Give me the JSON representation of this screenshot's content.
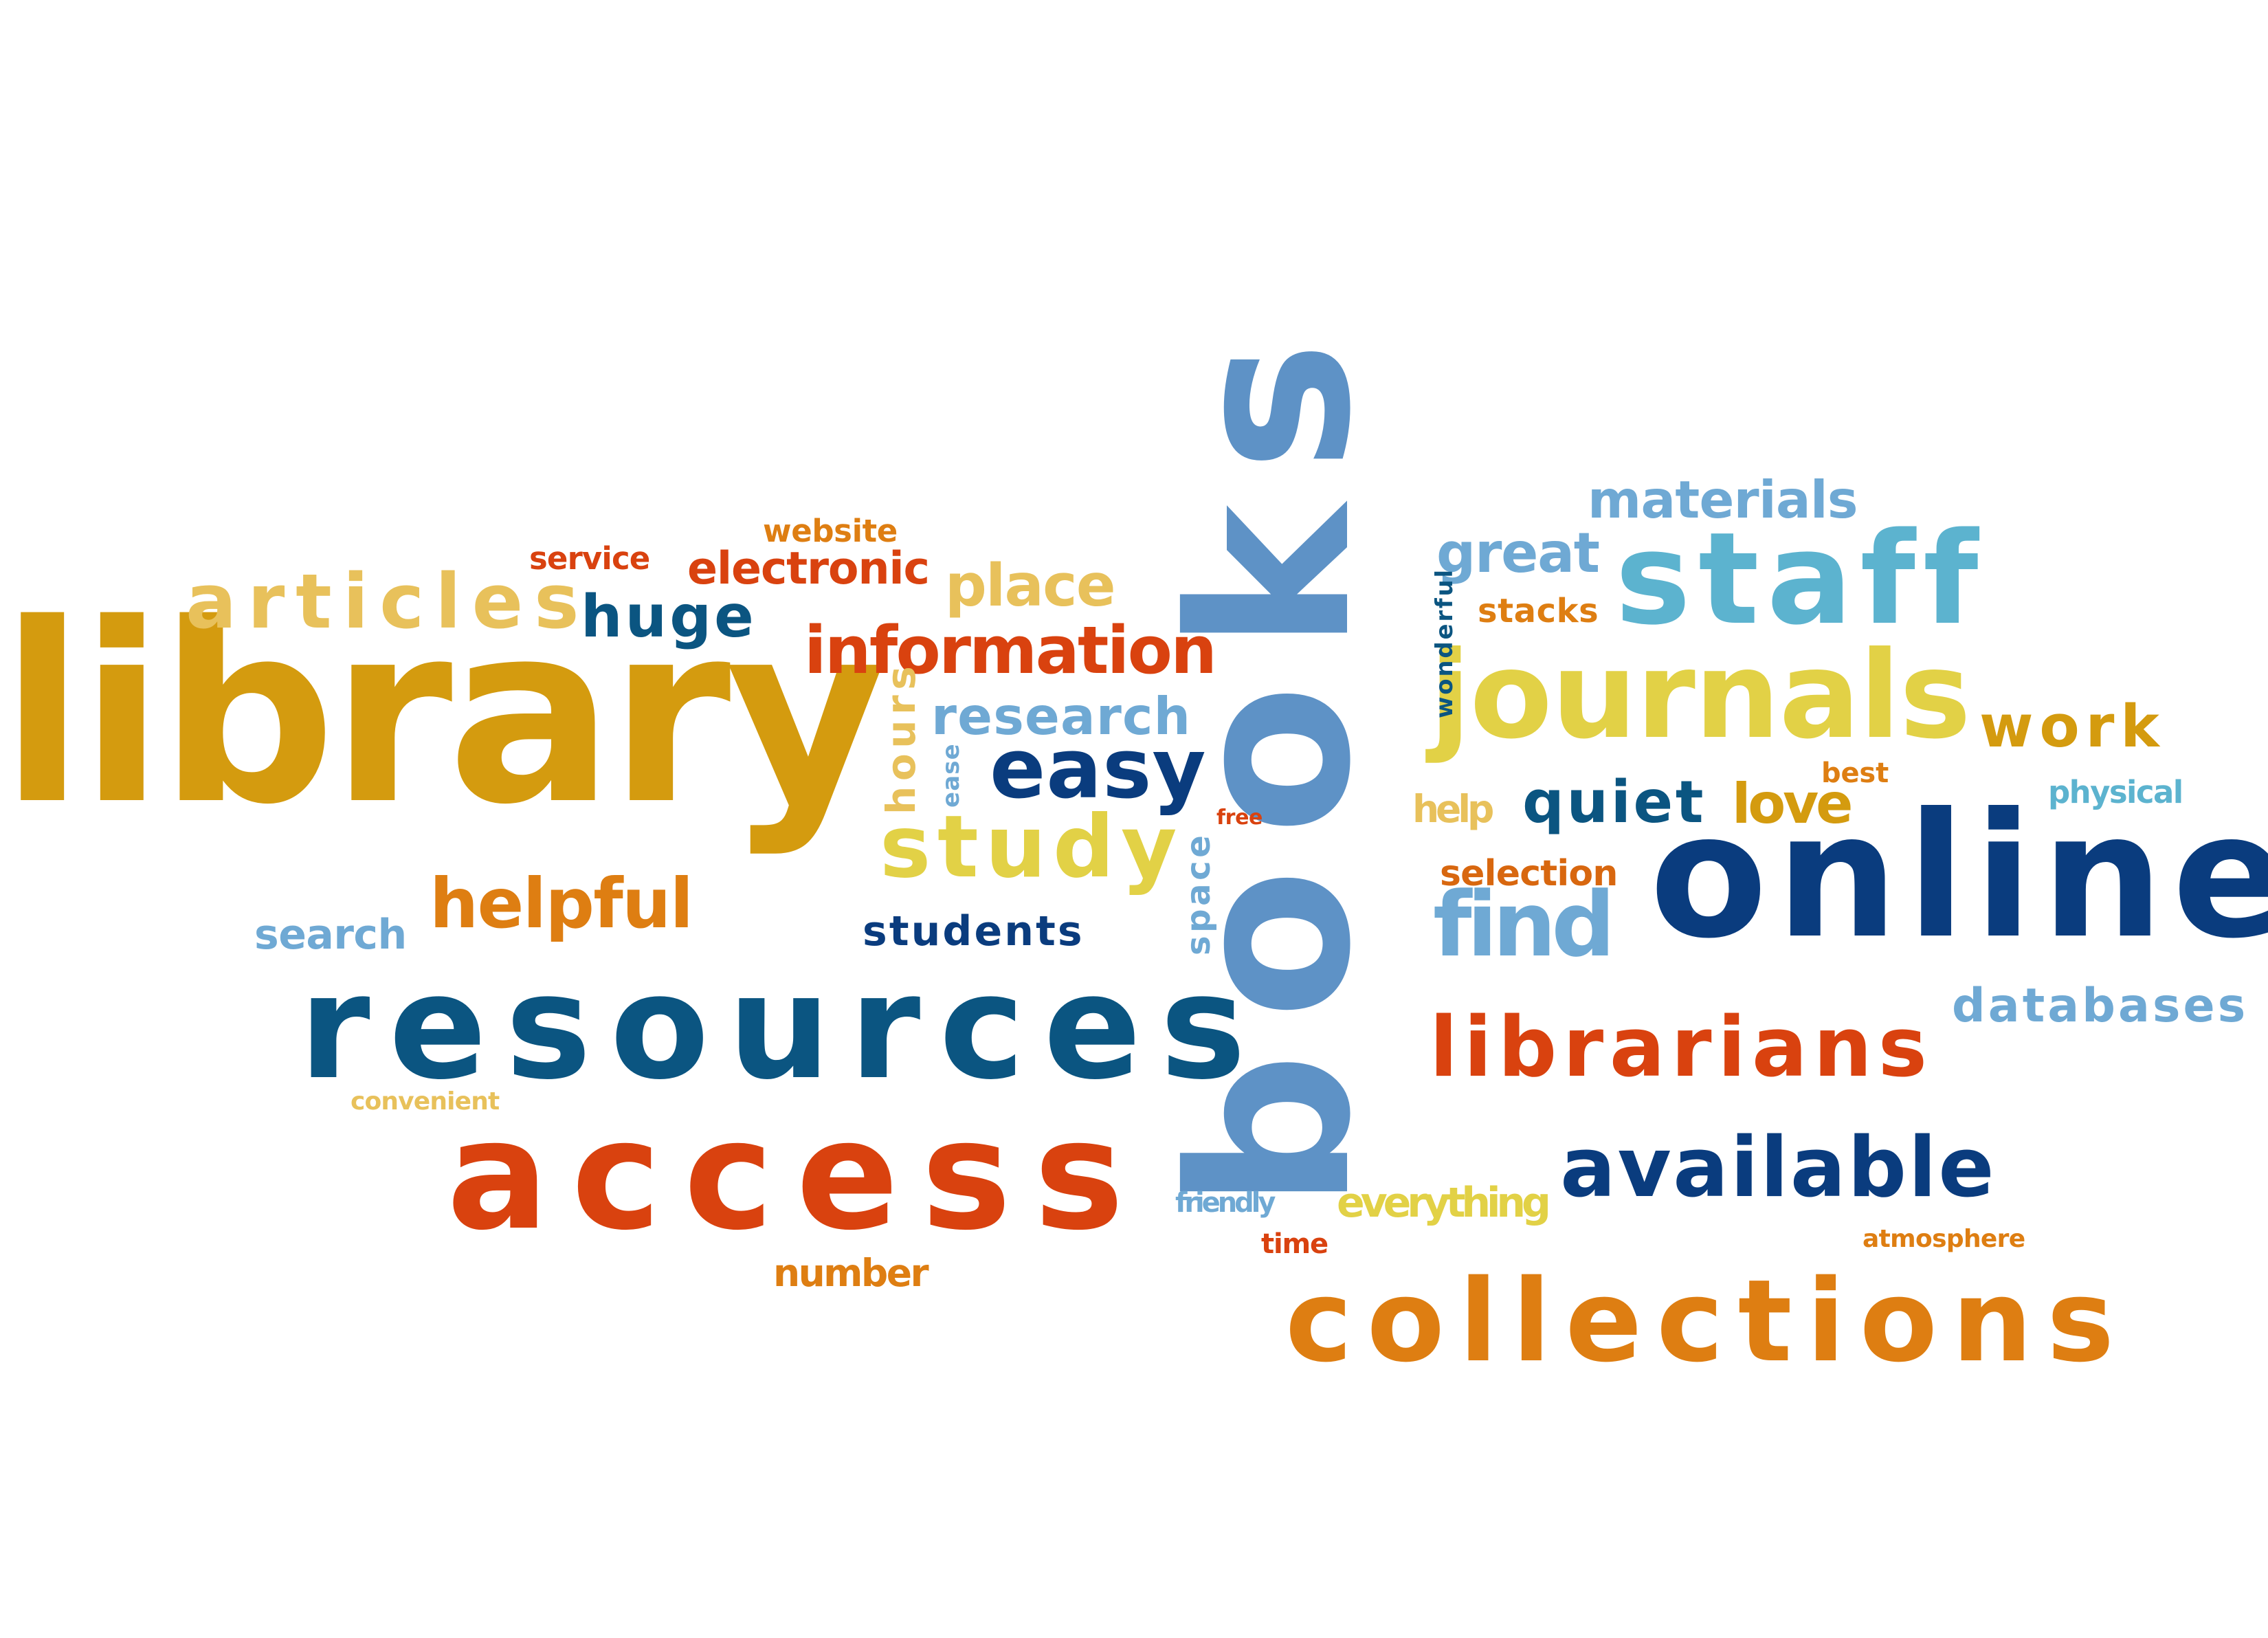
{
  "palette": {
    "gold": "#D49B0F",
    "light_gold": "#E8C15B",
    "yellow": "#E2D146",
    "orange_red": "#D9420F",
    "orange": "#DE7E12",
    "dark_orange": "#D8670F",
    "navy": "#0A3C7E",
    "teal_blue": "#0B5581",
    "steel_blue": "#5E92C6",
    "light_blue": "#6FA9D4",
    "sky_blue": "#5CB3CF"
  },
  "words": [
    {
      "text": "library",
      "color": "#D49B0F"
    },
    {
      "text": "books",
      "color": "#5E92C6"
    },
    {
      "text": "online",
      "color": "#0A3C7E"
    },
    {
      "text": "resources",
      "color": "#0B5581"
    },
    {
      "text": "access",
      "color": "#D9420F"
    },
    {
      "text": "collections",
      "color": "#DE7E12"
    },
    {
      "text": "journals",
      "color": "#E2D146"
    },
    {
      "text": "staff",
      "color": "#5CB3CF"
    },
    {
      "text": "librarians",
      "color": "#D9420F"
    },
    {
      "text": "available",
      "color": "#0A3C7E"
    },
    {
      "text": "articles",
      "color": "#E8C15B"
    },
    {
      "text": "information",
      "color": "#D9420F"
    },
    {
      "text": "study",
      "color": "#E2D146"
    },
    {
      "text": "find",
      "color": "#6FA9D4"
    },
    {
      "text": "easy",
      "color": "#0A3C7E"
    },
    {
      "text": "helpful",
      "color": "#DE7E12"
    },
    {
      "text": "huge",
      "color": "#0B5581"
    },
    {
      "text": "place",
      "color": "#E8C15B"
    },
    {
      "text": "research",
      "color": "#6FA9D4"
    },
    {
      "text": "materials",
      "color": "#6FA9D4"
    },
    {
      "text": "great",
      "color": "#6FA9D4"
    },
    {
      "text": "work",
      "color": "#D49B0F"
    },
    {
      "text": "quiet",
      "color": "#0B5581"
    },
    {
      "text": "love",
      "color": "#D49B0F"
    },
    {
      "text": "electronic",
      "color": "#D9420F"
    },
    {
      "text": "databases",
      "color": "#6FA9D4"
    },
    {
      "text": "students",
      "color": "#0A3C7E"
    },
    {
      "text": "search",
      "color": "#6FA9D4"
    },
    {
      "text": "service",
      "color": "#D9420F"
    },
    {
      "text": "website",
      "color": "#DE7E12"
    },
    {
      "text": "stacks",
      "color": "#DE7E12"
    },
    {
      "text": "selection",
      "color": "#D8670F"
    },
    {
      "text": "everything",
      "color": "#E2D146"
    },
    {
      "text": "number",
      "color": "#DE7E12"
    },
    {
      "text": "help",
      "color": "#E8C15B"
    },
    {
      "text": "physical",
      "color": "#5CB3CF"
    },
    {
      "text": "best",
      "color": "#DE7E12"
    },
    {
      "text": "friendly",
      "color": "#6FA9D4"
    },
    {
      "text": "time",
      "color": "#D9420F"
    },
    {
      "text": "atmosphere",
      "color": "#DE7E12"
    },
    {
      "text": "convenient",
      "color": "#E8C15B"
    },
    {
      "text": "free",
      "color": "#D9420F"
    },
    {
      "text": "hours",
      "color": "#E8C15B"
    },
    {
      "text": "ease",
      "color": "#6FA9D4"
    },
    {
      "text": "space",
      "color": "#6FA9D4"
    },
    {
      "text": "wonderful",
      "color": "#0B5581"
    }
  ]
}
